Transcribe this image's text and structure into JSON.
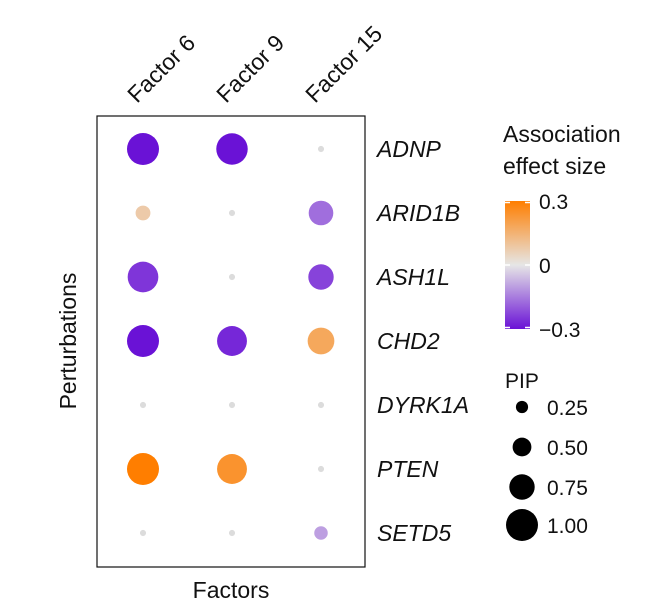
{
  "chart_data": {
    "type": "dot-matrix",
    "xlabel": "Factors",
    "ylabel": "Perturbations",
    "columns": [
      "Factor 6",
      "Factor 9",
      "Factor 15"
    ],
    "rows": [
      "ADNP",
      "ARID1B",
      "ASH1L",
      "CHD2",
      "DYRK1A",
      "PTEN",
      "SETD5"
    ],
    "points": [
      {
        "row": "ADNP",
        "col": "Factor 6",
        "effect": -0.3,
        "pip": 1.0
      },
      {
        "row": "ADNP",
        "col": "Factor 9",
        "effect": -0.3,
        "pip": 0.98
      },
      {
        "row": "ADNP",
        "col": "Factor 15",
        "effect": 0.0,
        "pip": 0.02
      },
      {
        "row": "ARID1B",
        "col": "Factor 6",
        "effect": 0.08,
        "pip": 0.35
      },
      {
        "row": "ARID1B",
        "col": "Factor 9",
        "effect": 0.0,
        "pip": 0.02
      },
      {
        "row": "ARID1B",
        "col": "Factor 15",
        "effect": -0.17,
        "pip": 0.72
      },
      {
        "row": "ASH1L",
        "col": "Factor 6",
        "effect": -0.25,
        "pip": 0.95
      },
      {
        "row": "ASH1L",
        "col": "Factor 9",
        "effect": 0.0,
        "pip": 0.02
      },
      {
        "row": "ASH1L",
        "col": "Factor 15",
        "effect": -0.23,
        "pip": 0.75
      },
      {
        "row": "CHD2",
        "col": "Factor 6",
        "effect": -0.3,
        "pip": 1.0
      },
      {
        "row": "CHD2",
        "col": "Factor 9",
        "effect": -0.27,
        "pip": 0.92
      },
      {
        "row": "CHD2",
        "col": "Factor 15",
        "effect": 0.18,
        "pip": 0.8
      },
      {
        "row": "DYRK1A",
        "col": "Factor 6",
        "effect": 0.0,
        "pip": 0.02
      },
      {
        "row": "DYRK1A",
        "col": "Factor 9",
        "effect": 0.0,
        "pip": 0.02
      },
      {
        "row": "DYRK1A",
        "col": "Factor 15",
        "effect": 0.0,
        "pip": 0.02
      },
      {
        "row": "PTEN",
        "col": "Factor 6",
        "effect": 0.3,
        "pip": 1.0
      },
      {
        "row": "PTEN",
        "col": "Factor 9",
        "effect": 0.24,
        "pip": 0.92
      },
      {
        "row": "PTEN",
        "col": "Factor 15",
        "effect": 0.0,
        "pip": 0.02
      },
      {
        "row": "SETD5",
        "col": "Factor 6",
        "effect": 0.0,
        "pip": 0.02
      },
      {
        "row": "SETD5",
        "col": "Factor 9",
        "effect": 0.0,
        "pip": 0.02
      },
      {
        "row": "SETD5",
        "col": "Factor 15",
        "effect": -0.1,
        "pip": 0.3
      }
    ],
    "color_legend": {
      "title": [
        "Association",
        "effect size"
      ],
      "min": -0.3,
      "max": 0.3,
      "low_color": "#6a12d6",
      "mid_color": "#e6e6e6",
      "high_color": "#ff7e00",
      "ticks": [
        {
          "value": 0.3,
          "label": "0.3"
        },
        {
          "value": 0,
          "label": "0"
        },
        {
          "value": -0.3,
          "label": "−0.3"
        }
      ]
    },
    "size_legend": {
      "title": "PIP",
      "entries": [
        {
          "value": 0.25,
          "label": "0.25"
        },
        {
          "value": 0.5,
          "label": "0.50"
        },
        {
          "value": 0.75,
          "label": "0.75"
        },
        {
          "value": 1.0,
          "label": "1.00"
        }
      ]
    }
  }
}
